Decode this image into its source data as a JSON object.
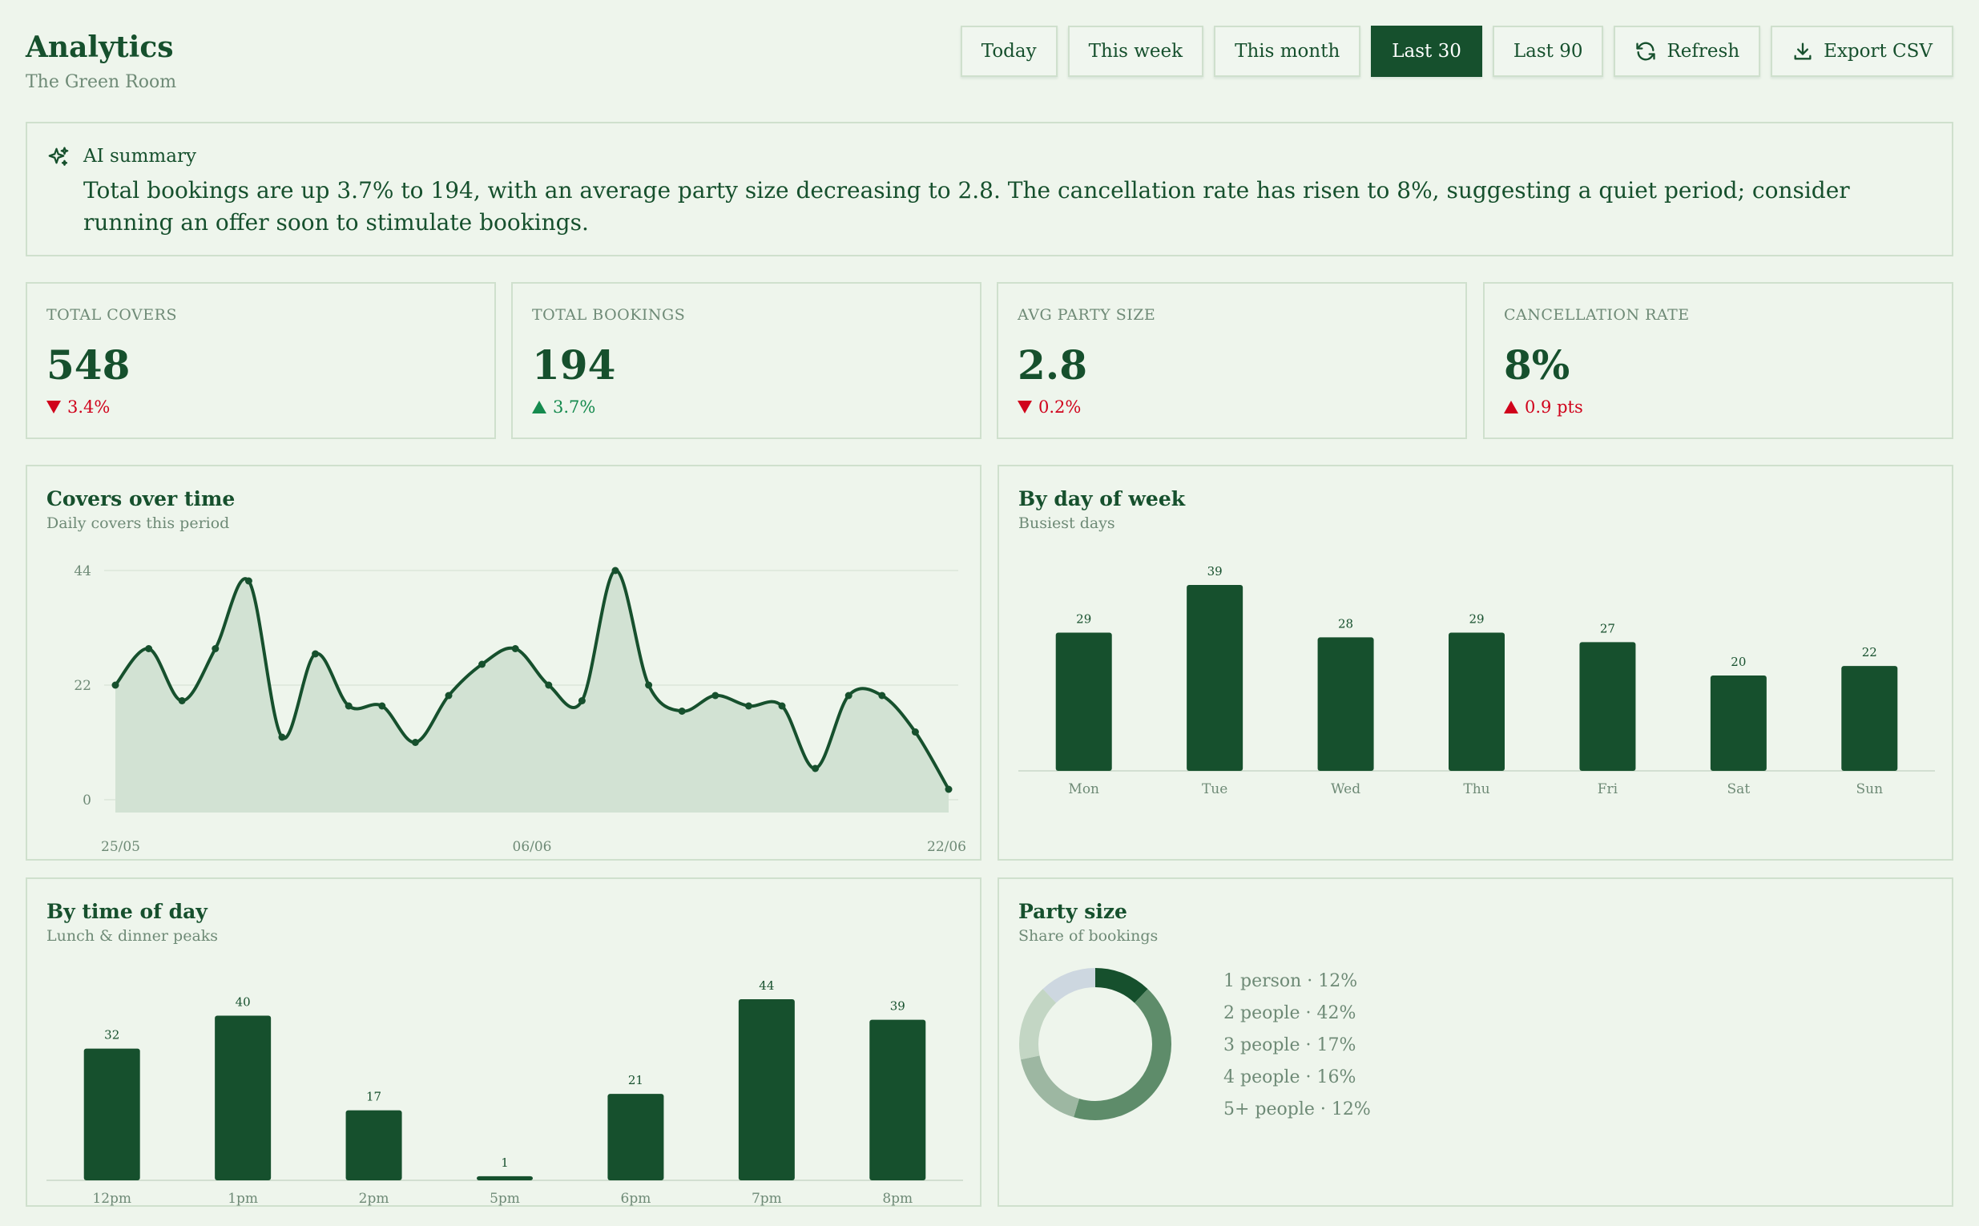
{
  "header": {
    "title": "Analytics",
    "subtitle": "The Green Room"
  },
  "toolbar": {
    "ranges": [
      {
        "label": "Today",
        "active": false
      },
      {
        "label": "This week",
        "active": false
      },
      {
        "label": "This month",
        "active": false
      },
      {
        "label": "Last 30",
        "active": true
      },
      {
        "label": "Last 90",
        "active": false
      }
    ],
    "refresh_label": "Refresh",
    "refresh_icon": "refresh-icon",
    "export_label": "Export CSV",
    "export_icon": "download-icon"
  },
  "summary": {
    "icon": "sparkles-icon",
    "label": "AI summary",
    "text": "Total bookings are up 3.7% to 194, with an average party size decreasing to 2.8. The cancellation rate has risen to 8%, suggesting a quiet period; consider running an offer soon to stimulate bookings."
  },
  "kpis": [
    {
      "label": "TOTAL COVERS",
      "value": "548",
      "direction": "down",
      "delta": "3.4%",
      "tone": "bad"
    },
    {
      "label": "TOTAL BOOKINGS",
      "value": "194",
      "direction": "up",
      "delta": "3.7%",
      "tone": "good"
    },
    {
      "label": "AVG PARTY SIZE",
      "value": "2.8",
      "direction": "down",
      "delta": "0.2%",
      "tone": "bad"
    },
    {
      "label": "CANCELLATION RATE",
      "value": "8%",
      "direction": "up",
      "delta": "0.9 pts",
      "tone": "bad"
    }
  ],
  "colors": {
    "primary": "#16502d",
    "background": "#eef5ec",
    "border": "#cfe0cd",
    "muted_text": "#6e8a76",
    "area_fill": "#d2e2d3",
    "positive": "#158a4e",
    "negative": "#d0021b"
  },
  "panels": {
    "covers": {
      "title": "Covers over time",
      "subtitle": "Daily covers this period"
    },
    "dow": {
      "title": "By day of week",
      "subtitle": "Busiest days"
    },
    "tod": {
      "title": "By time of day",
      "subtitle": "Lunch & dinner peaks"
    },
    "party": {
      "title": "Party size",
      "subtitle": "Share of bookings"
    }
  },
  "chart_data": [
    {
      "id": "covers",
      "type": "area",
      "title": "Covers over time",
      "x_ticks": [
        "25/05",
        "06/06",
        "22/06"
      ],
      "y_ticks": [
        0,
        22,
        44
      ],
      "ylim": [
        0,
        44
      ],
      "values": [
        22,
        29,
        19,
        29,
        42,
        12,
        28,
        18,
        18,
        11,
        20,
        26,
        29,
        22,
        19,
        44,
        22,
        17,
        20,
        18,
        18,
        6,
        20,
        20,
        13,
        2
      ],
      "grid": true
    },
    {
      "id": "dow",
      "type": "bar",
      "title": "By day of week",
      "categories": [
        "Mon",
        "Tue",
        "Wed",
        "Thu",
        "Fri",
        "Sat",
        "Sun"
      ],
      "values": [
        29,
        39,
        28,
        29,
        27,
        20,
        22
      ],
      "ylim": [
        0,
        39
      ]
    },
    {
      "id": "tod",
      "type": "bar",
      "title": "By time of day",
      "categories": [
        "12pm",
        "1pm",
        "2pm",
        "5pm",
        "6pm",
        "7pm",
        "8pm"
      ],
      "values": [
        32,
        40,
        17,
        1,
        21,
        44,
        39
      ],
      "ylim": [
        0,
        44
      ]
    },
    {
      "id": "party",
      "type": "pie",
      "title": "Party size",
      "slices": [
        {
          "label": "1 person",
          "value": 12,
          "display": "1 person · 12%",
          "color": "#16502d"
        },
        {
          "label": "2 people",
          "value": 42,
          "display": "2 people · 42%",
          "color": "#5e8c6a"
        },
        {
          "label": "3 people",
          "value": 17,
          "display": "3 people · 17%",
          "color": "#9db7a2"
        },
        {
          "label": "4 people",
          "value": 16,
          "display": "4 people · 16%",
          "color": "#c3d6c4"
        },
        {
          "label": "5+ people",
          "value": 12,
          "display": "5+ people · 12%",
          "color": "#cdd7e0"
        }
      ]
    }
  ]
}
